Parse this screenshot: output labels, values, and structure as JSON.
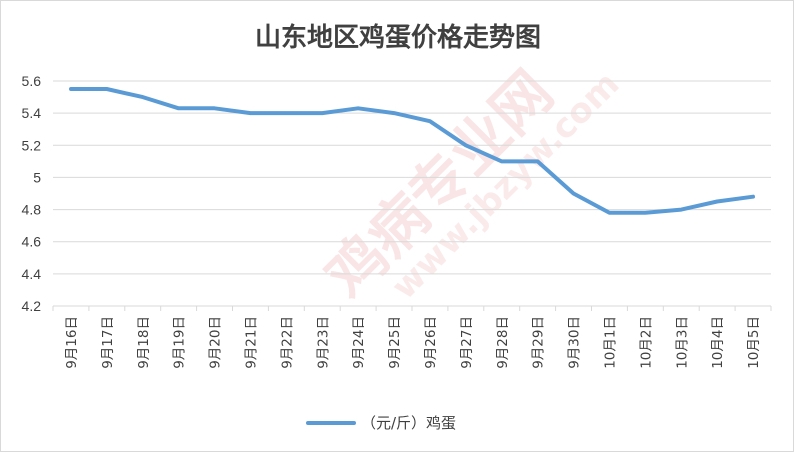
{
  "chart_data": {
    "type": "line",
    "title": "山东地区鸡蛋价格走势图",
    "categories": [
      "9月16日",
      "9月17日",
      "9月18日",
      "9月19日",
      "9月20日",
      "9月21日",
      "9月22日",
      "9月23日",
      "9月24日",
      "9月25日",
      "9月26日",
      "9月27日",
      "9月28日",
      "9月29日",
      "9月30日",
      "10月1日",
      "10月2日",
      "10月3日",
      "10月4日",
      "10月5日"
    ],
    "series": [
      {
        "name": "（元/斤）鸡蛋",
        "color": "#5b9bd5",
        "values": [
          5.55,
          5.55,
          5.5,
          5.43,
          5.43,
          5.4,
          5.4,
          5.4,
          5.43,
          5.4,
          5.35,
          5.2,
          5.1,
          5.1,
          4.9,
          4.78,
          4.78,
          4.8,
          4.85,
          4.88
        ]
      }
    ],
    "ylim": [
      4.2,
      5.6
    ],
    "yticks": [
      4.2,
      4.4,
      4.6,
      4.8,
      5,
      5.2,
      5.4,
      5.6
    ],
    "ytick_labels": [
      "4.2",
      "4.4",
      "4.6",
      "4.8",
      "5",
      "5.2",
      "5.4",
      "5.6"
    ],
    "xlabel": "",
    "ylabel": "",
    "grid": true,
    "legend_position": "bottom",
    "gridline_color": "#d9d9d9",
    "watermark": {
      "line1": "鸡病专业网",
      "line2": "www.jbzyw.com",
      "color": "#e8a0a0"
    }
  }
}
